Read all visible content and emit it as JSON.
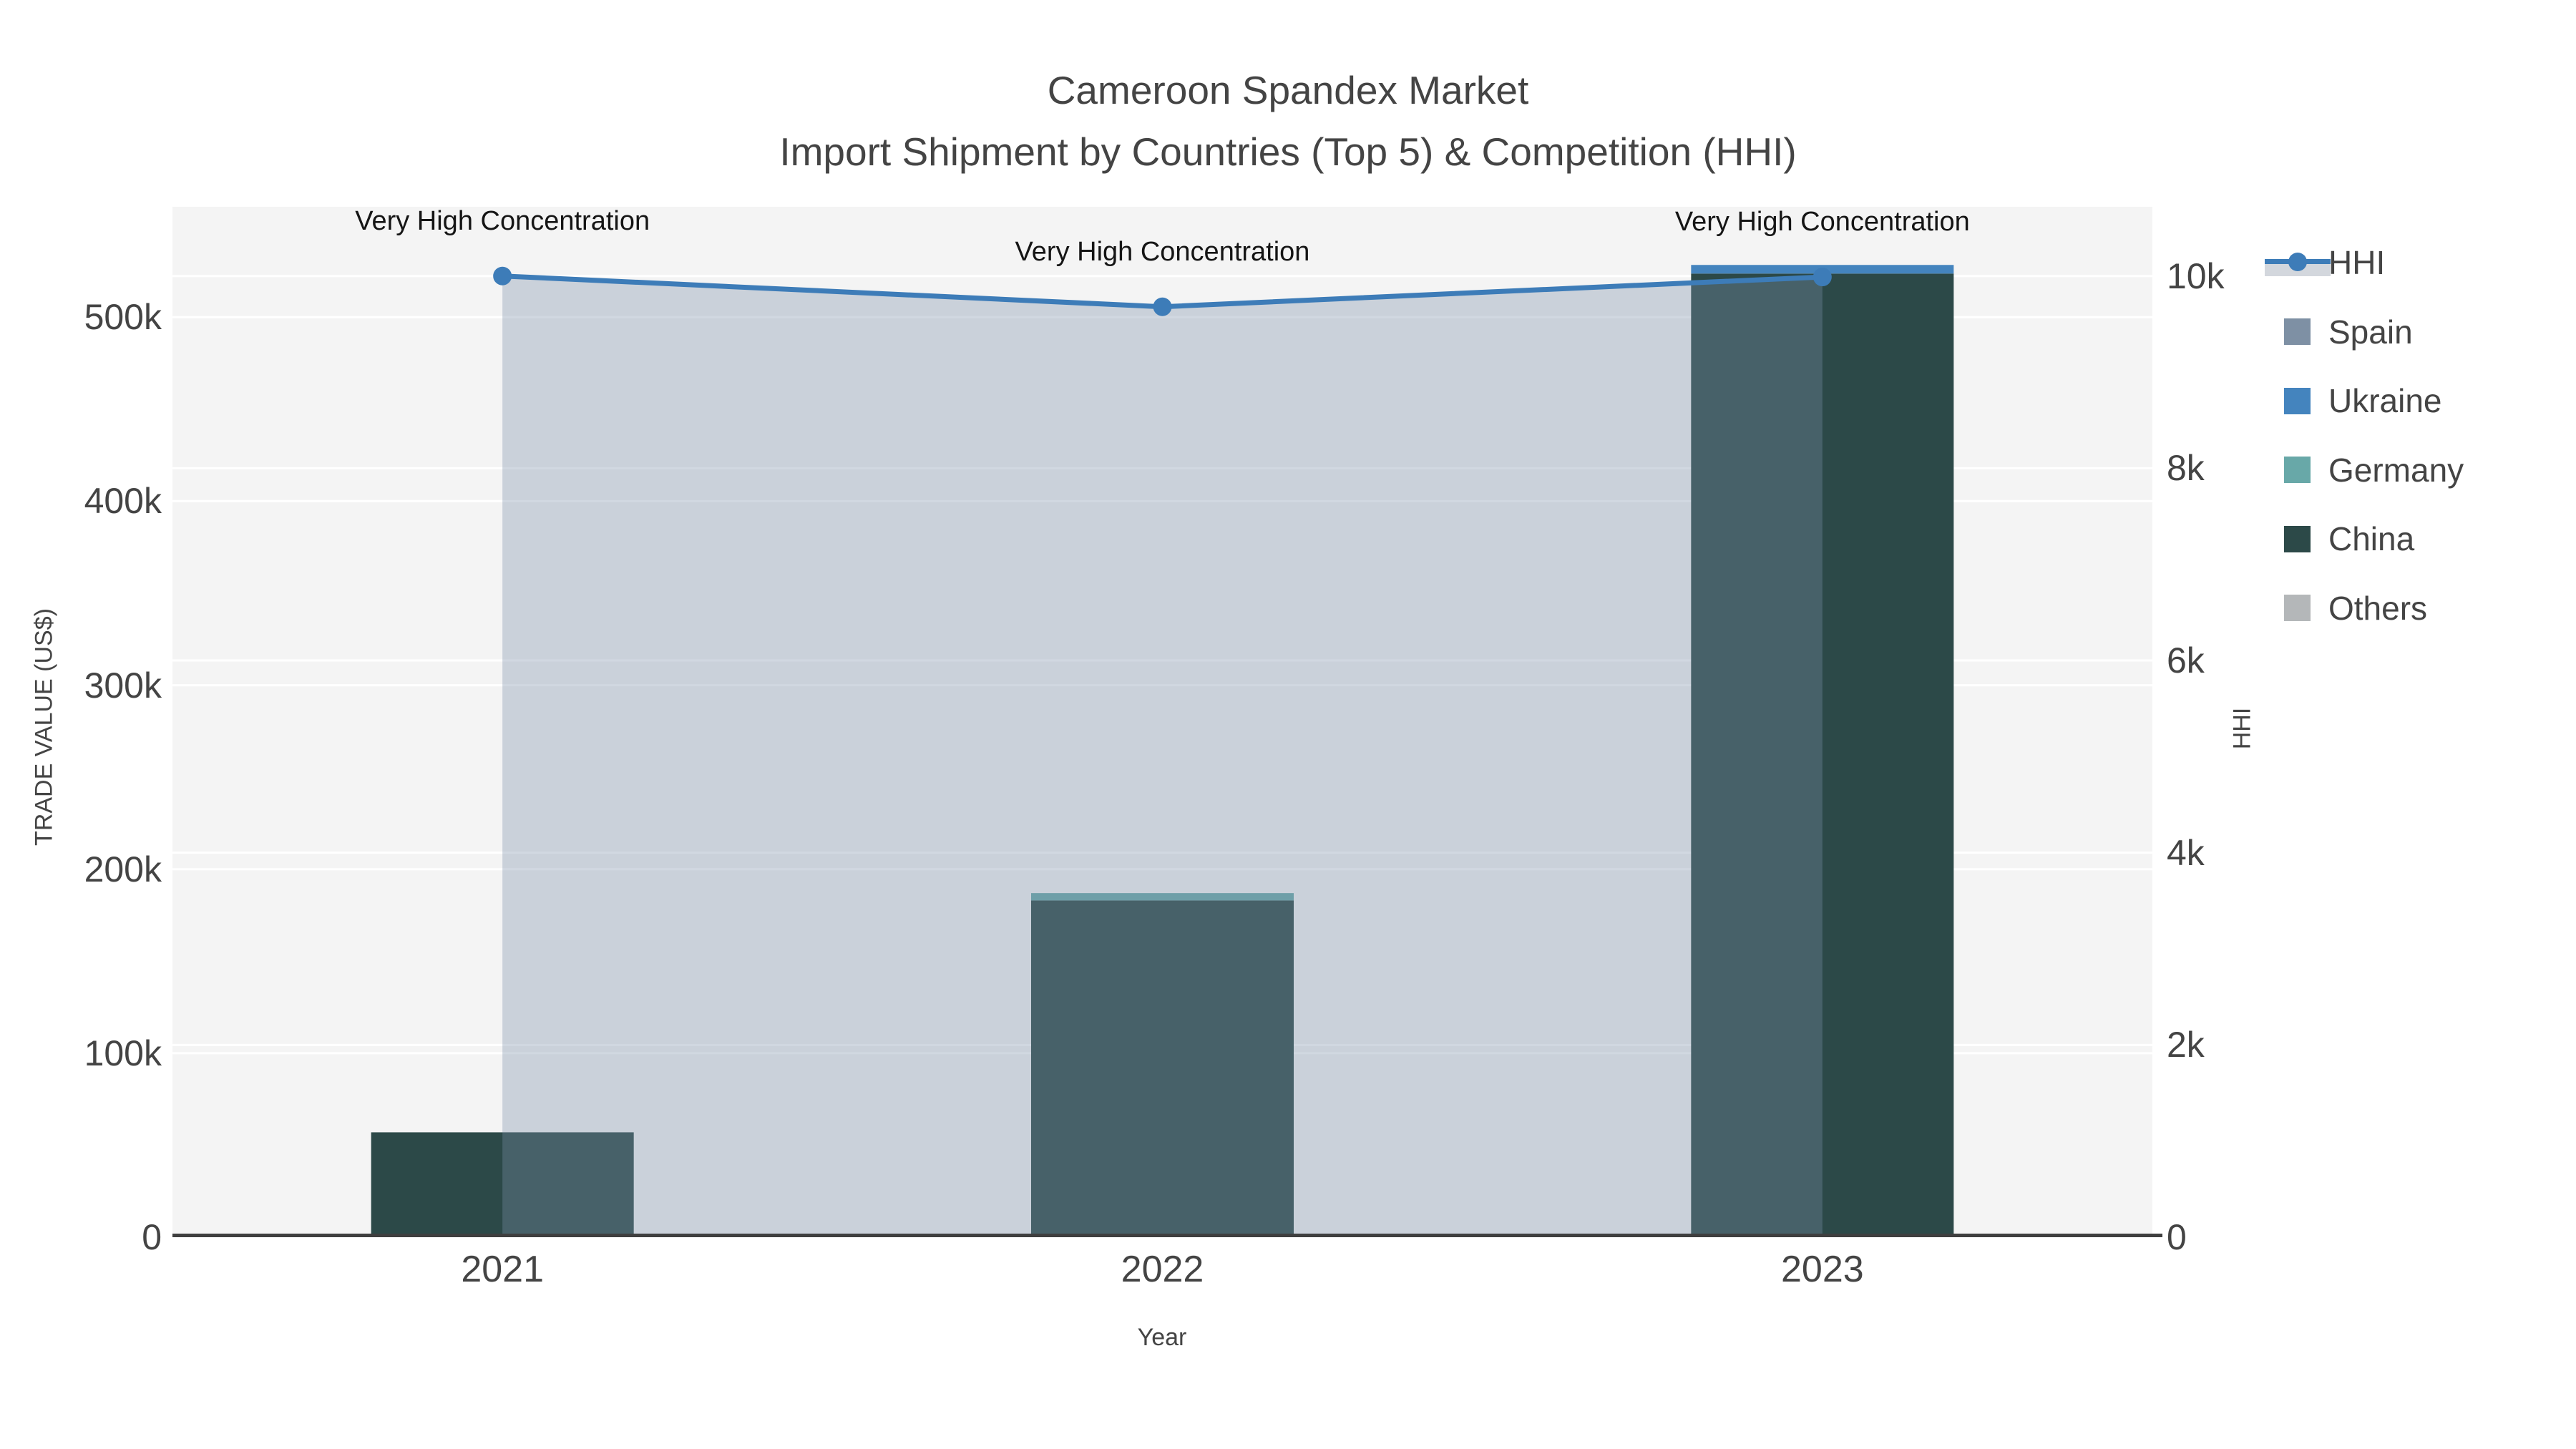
{
  "title": {
    "line1": "Cameroon Spandex Market",
    "line2": "Import Shipment by Countries (Top 5) & Competition (HHI)"
  },
  "axes": {
    "left": {
      "title": "TRADE VALUE (US$)",
      "tick_labels": [
        "0",
        "100k",
        "200k",
        "300k",
        "400k",
        "500k"
      ],
      "tick_values": [
        0,
        100000,
        200000,
        300000,
        400000,
        500000
      ],
      "range": [
        0,
        560000
      ]
    },
    "right": {
      "title": "HHI",
      "tick_labels": [
        "0",
        "2k",
        "4k",
        "6k",
        "8k",
        "10k"
      ],
      "tick_values": [
        0,
        2000,
        4000,
        6000,
        8000,
        10000
      ],
      "range": [
        0,
        10720
      ]
    },
    "x": {
      "title": "Year",
      "tick_labels": [
        "2021",
        "2022",
        "2023"
      ]
    }
  },
  "legend": {
    "items": [
      {
        "label": "HHI",
        "type": "line",
        "color": "#3d7cb8"
      },
      {
        "label": "Spain",
        "type": "swatch",
        "color": "#7e90a4"
      },
      {
        "label": "Ukraine",
        "type": "swatch",
        "color": "#4484be"
      },
      {
        "label": "Germany",
        "type": "swatch",
        "color": "#68a8a8"
      },
      {
        "label": "China",
        "type": "swatch",
        "color": "#2c4948"
      },
      {
        "label": "Others",
        "type": "swatch",
        "color": "#b4b7b9"
      }
    ]
  },
  "annotations": [
    {
      "category": "2021",
      "text": "Very High Concentration"
    },
    {
      "category": "2022",
      "text": "Very High Concentration"
    },
    {
      "category": "2023",
      "text": "Very High Concentration"
    }
  ],
  "chart_data": {
    "type": "bar",
    "subtype": "stacked-bars-with-dual-axis-line",
    "title": "Cameroon Spandex Market — Import Shipment by Countries (Top 5) & Competition (HHI)",
    "categories": [
      "2021",
      "2022",
      "2023"
    ],
    "xlabel": "Year",
    "ylabel_left": "TRADE VALUE (US$)",
    "ylabel_right": "HHI",
    "ylim_left": [
      0,
      560000
    ],
    "ylim_right": [
      0,
      10720
    ],
    "grid": true,
    "legend_position": "right",
    "stack_order": [
      "China",
      "Germany",
      "Ukraine",
      "Spain",
      "Others"
    ],
    "series": [
      {
        "name": "Spain",
        "type": "bar",
        "axis": "left",
        "values": [
          0,
          0,
          0
        ]
      },
      {
        "name": "Ukraine",
        "type": "bar",
        "axis": "left",
        "values": [
          0,
          0,
          4700
        ]
      },
      {
        "name": "Germany",
        "type": "bar",
        "axis": "left",
        "values": [
          0,
          4000,
          0
        ]
      },
      {
        "name": "China",
        "type": "bar",
        "axis": "left",
        "values": [
          57000,
          183000,
          523700
        ]
      },
      {
        "name": "Others",
        "type": "bar",
        "axis": "left",
        "values": [
          0,
          0,
          0
        ]
      },
      {
        "name": "HHI",
        "type": "line",
        "axis": "right",
        "values": [
          10000,
          9680,
          9990
        ],
        "fill": "tozeroy",
        "annotations": [
          "Very High Concentration",
          "Very High Concentration",
          "Very High Concentration"
        ]
      }
    ]
  },
  "colors": {
    "HHI": "#3d7cb8",
    "Spain": "#7e90a4",
    "Ukraine": "#4484be",
    "Germany": "#68a8a8",
    "China": "#2c4948",
    "Others": "#b4b7b9",
    "area_fill": "rgba(122,143,170,0.35)",
    "plot_bg": "#f4f4f4",
    "gridline": "#ffffff",
    "axis_line": "#3f3f3f",
    "text": "#444444",
    "annotation_text": "#151515"
  }
}
